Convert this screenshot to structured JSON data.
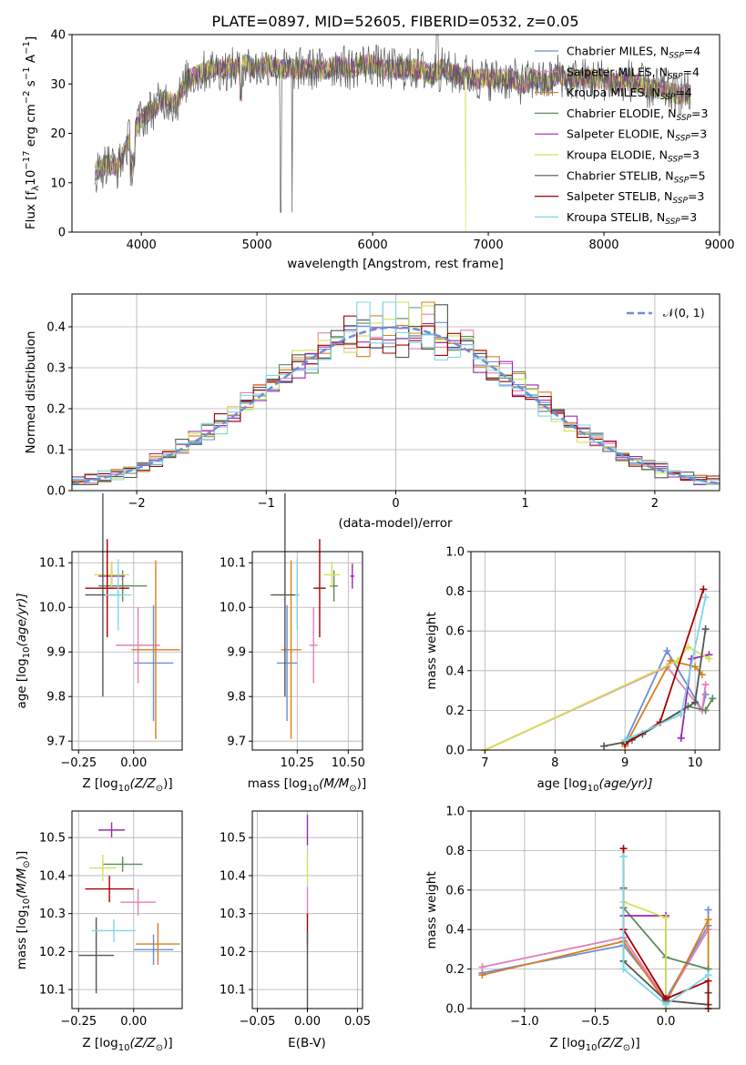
{
  "colors": {
    "c0": "#6a8fd8",
    "c1": "#e37fb9",
    "c2": "#d7801e",
    "c3": "#5c8a5c",
    "c4": "#9b27b4",
    "c5": "#d4e157",
    "c6": "#555555",
    "c7": "#a40000",
    "c8": "#7fd6e6"
  },
  "chart_data": [
    {
      "type": "line",
      "title": "PLATE=0897, MJD=52605, FIBERID=0532, z=0.05",
      "xlabel": "wavelength [Angstrom, rest frame]",
      "ylabel": "Flux [f",
      "ylabel_sub": "λ",
      "ylabel_mid": "10",
      "ylabel_sup1": "−17",
      "ylabel_mid2": " erg cm",
      "ylabel_sup2": "−2",
      "ylabel_mid3": " s",
      "ylabel_sup3": "−1",
      "ylabel_mid4": " A",
      "ylabel_sup4": "−1",
      "ylabel_end": "]",
      "xlim": [
        3400,
        9000
      ],
      "ylim": [
        0,
        40
      ],
      "xticks": [
        "4000",
        "5000",
        "6000",
        "7000",
        "8000",
        "9000"
      ],
      "yticks": [
        "0",
        "10",
        "20",
        "30",
        "40"
      ],
      "legend_position": "top-right",
      "legend": [
        {
          "imf": "Chabrier MILES, N",
          "sub": "SSP",
          "eq": "=4",
          "color": "#6a8fd8"
        },
        {
          "imf": "Salpeter MILES, N",
          "sub": "SSP",
          "eq": "=4",
          "color": "#e37fb9"
        },
        {
          "imf": "Kroupa MILES, N",
          "sub": "SSP",
          "eq": "=4",
          "color": "#d7801e"
        },
        {
          "imf": "Chabrier ELODIE, N",
          "sub": "SSP",
          "eq": "=3",
          "color": "#5c8a5c"
        },
        {
          "imf": "Salpeter ELODIE, N",
          "sub": "SSP",
          "eq": "=3",
          "color": "#9b27b4"
        },
        {
          "imf": "Kroupa ELODIE, N",
          "sub": "SSP",
          "eq": "=3",
          "color": "#d4e157"
        },
        {
          "imf": "Chabrier STELIB, N",
          "sub": "SSP",
          "eq": "=5",
          "color": "#555555"
        },
        {
          "imf": "Salpeter STELIB, N",
          "sub": "SSP",
          "eq": "=3",
          "color": "#a40000"
        },
        {
          "imf": "Kroupa STELIB, N",
          "sub": "SSP",
          "eq": "=3",
          "color": "#7fd6e6"
        }
      ],
      "spectrum_envelope": [
        [
          3600,
          12
        ],
        [
          3700,
          14
        ],
        [
          3800,
          13
        ],
        [
          3900,
          19
        ],
        [
          4000,
          23
        ],
        [
          4100,
          25
        ],
        [
          4200,
          27
        ],
        [
          4300,
          26
        ],
        [
          4400,
          31
        ],
        [
          4500,
          32
        ],
        [
          4600,
          33
        ],
        [
          4700,
          33
        ],
        [
          4800,
          33
        ],
        [
          4900,
          34
        ],
        [
          5000,
          33
        ],
        [
          5100,
          34
        ],
        [
          5200,
          33
        ],
        [
          5300,
          33
        ],
        [
          5400,
          33
        ],
        [
          5500,
          33
        ],
        [
          5600,
          33
        ],
        [
          5700,
          34
        ],
        [
          5800,
          33
        ],
        [
          5900,
          34
        ],
        [
          6000,
          34
        ],
        [
          6100,
          33
        ],
        [
          6200,
          33
        ],
        [
          6300,
          33
        ],
        [
          6400,
          33
        ],
        [
          6500,
          32
        ],
        [
          6600,
          33
        ],
        [
          6700,
          32
        ],
        [
          6800,
          32
        ],
        [
          6900,
          31
        ],
        [
          7000,
          31
        ],
        [
          7100,
          31
        ],
        [
          7200,
          31
        ],
        [
          7300,
          30
        ],
        [
          7400,
          31
        ],
        [
          7500,
          30
        ],
        [
          7600,
          32
        ],
        [
          7700,
          31
        ],
        [
          7800,
          31
        ],
        [
          7900,
          31
        ],
        [
          8000,
          31
        ],
        [
          8100,
          30
        ],
        [
          8200,
          31
        ],
        [
          8300,
          30
        ],
        [
          8400,
          29
        ],
        [
          8500,
          29
        ],
        [
          8600,
          28
        ],
        [
          8700,
          28
        ]
      ]
    },
    {
      "type": "line",
      "xlabel": "(data-model)/error",
      "ylabel": "Normed distribution",
      "xlim": [
        -2.5,
        2.5
      ],
      "ylim": [
        0,
        0.48
      ],
      "xticks": [
        "−2",
        "−1",
        "0",
        "1",
        "2"
      ],
      "yticks": [
        "0.0",
        "0.1",
        "0.2",
        "0.3",
        "0.4"
      ],
      "legend_position": "top-right",
      "legend": [
        {
          "label": "𝒩(0, 1)",
          "color": "#6a8fd8"
        }
      ]
    },
    {
      "type": "scatter",
      "xlabel": "Z [log",
      "xlabel_sub": "10",
      "xlabel_end": "(Z/Z",
      "xlabel_sub2": "⊙",
      "xlabel_end2": ")]",
      "ylabel": "age  [log",
      "ylabel_sub": "10",
      "ylabel_end": "(age/yr)]",
      "xlim": [
        -0.28,
        0.22
      ],
      "ylim": [
        9.68,
        10.125
      ],
      "xticks": [
        "−0.25",
        "0.00"
      ],
      "yticks": [
        "9.7",
        "9.8",
        "9.9",
        "10.0",
        "10.1"
      ],
      "points": [
        {
          "x": 0.09,
          "y": 9.875,
          "ex": 0.09,
          "ey": 0.13,
          "color": "#6a8fd8"
        },
        {
          "x": 0.02,
          "y": 9.915,
          "ex": 0.1,
          "ey": 0.085,
          "color": "#e37fb9"
        },
        {
          "x": 0.1,
          "y": 9.905,
          "ex": 0.11,
          "ey": 0.2,
          "color": "#d7801e"
        },
        {
          "x": -0.05,
          "y": 10.048,
          "ex": 0.11,
          "ey": 0.035,
          "color": "#5c8a5c"
        },
        {
          "x": -0.1,
          "y": 10.07,
          "ex": 0.06,
          "ey": 0.028,
          "color": "#9b27b4"
        },
        {
          "x": -0.1,
          "y": 10.073,
          "ex": 0.08,
          "ey": 0.03,
          "color": "#d4e157"
        },
        {
          "x": -0.14,
          "y": 10.028,
          "ex": 0.08,
          "ey": 0.228,
          "color": "#555555"
        },
        {
          "x": -0.12,
          "y": 10.043,
          "ex": 0.1,
          "ey": 0.11,
          "color": "#a40000"
        },
        {
          "x": -0.07,
          "y": 10.028,
          "ex": 0.06,
          "ey": 0.08,
          "color": "#7fd6e6"
        }
      ]
    },
    {
      "type": "scatter",
      "xlabel": "mass [log",
      "xlabel_sub": "10",
      "xlabel_end": "(M/M",
      "xlabel_sub2": "⊙",
      "xlabel_end2": ")]",
      "xlim": [
        10.03,
        10.57
      ],
      "ylim": [
        9.68,
        10.125
      ],
      "xticks": [
        "10.25",
        "10.50"
      ],
      "yticks": [
        "9.7",
        "9.8",
        "9.9",
        "10.0",
        "10.1"
      ],
      "points": [
        {
          "x": 10.2,
          "y": 9.875,
          "ex": 0.05,
          "ey": 0.13,
          "color": "#6a8fd8"
        },
        {
          "x": 10.33,
          "y": 9.915,
          "ex": 0.02,
          "ey": 0.085,
          "color": "#e37fb9"
        },
        {
          "x": 10.22,
          "y": 9.905,
          "ex": 0.05,
          "ey": 0.2,
          "color": "#d7801e"
        },
        {
          "x": 10.43,
          "y": 10.048,
          "ex": 0.02,
          "ey": 0.035,
          "color": "#5c8a5c"
        },
        {
          "x": 10.52,
          "y": 10.07,
          "ex": 0.01,
          "ey": 0.028,
          "color": "#9b27b4"
        },
        {
          "x": 10.42,
          "y": 10.073,
          "ex": 0.04,
          "ey": 0.03,
          "color": "#d4e157"
        },
        {
          "x": 10.19,
          "y": 10.028,
          "ex": 0.07,
          "ey": 0.228,
          "color": "#555555"
        },
        {
          "x": 10.36,
          "y": 10.043,
          "ex": 0.03,
          "ey": 0.11,
          "color": "#a40000"
        },
        {
          "x": 10.25,
          "y": 10.028,
          "ex": 0.01,
          "ey": 0.08,
          "color": "#7fd6e6"
        }
      ]
    },
    {
      "type": "line",
      "xlabel": "age  [log",
      "xlabel_sub": "10",
      "xlabel_end": "(age/yr)]",
      "ylabel": "mass weight",
      "xlim": [
        6.8,
        10.35
      ],
      "ylim": [
        0,
        1.0
      ],
      "xticks": [
        "7",
        "8",
        "9",
        "10"
      ],
      "yticks": [
        "0.0",
        "0.2",
        "0.4",
        "0.6",
        "0.8",
        "1.0"
      ],
      "series": [
        {
          "x": [
            9.0,
            9.6,
            10.1,
            10.15
          ],
          "y": [
            0.04,
            0.5,
            0.2,
            0.28
          ],
          "color": "#6a8fd8"
        },
        {
          "x": [
            7.0,
            9.6,
            10.1,
            10.15
          ],
          "y": [
            0.0,
            0.42,
            0.2,
            0.33
          ],
          "color": "#e37fb9"
        },
        {
          "x": [
            9.0,
            9.65,
            10.0,
            10.1
          ],
          "y": [
            0.02,
            0.45,
            0.42,
            0.38
          ],
          "color": "#d7801e"
        },
        {
          "x": [
            9.1,
            9.9,
            10.15,
            10.25
          ],
          "y": [
            0.05,
            0.22,
            0.2,
            0.26
          ],
          "color": "#5c8a5c"
        },
        {
          "x": [
            9.8,
            9.95,
            10.2
          ],
          "y": [
            0.06,
            0.46,
            0.48
          ],
          "color": "#9b27b4"
        },
        {
          "x": [
            7.0,
            9.75,
            9.9,
            10.2
          ],
          "y": [
            0.0,
            0.45,
            0.52,
            0.46
          ],
          "color": "#d4e157"
        },
        {
          "x": [
            8.7,
            9.0,
            9.25,
            10.0,
            10.15
          ],
          "y": [
            0.02,
            0.04,
            0.08,
            0.24,
            0.61
          ],
          "color": "#555555"
        },
        {
          "x": [
            9.0,
            9.5,
            10.12
          ],
          "y": [
            0.03,
            0.14,
            0.81
          ],
          "color": "#a40000"
        },
        {
          "x": [
            9.0,
            9.8,
            10.15
          ],
          "y": [
            0.05,
            0.18,
            0.77
          ],
          "color": "#7fd6e6"
        }
      ]
    },
    {
      "type": "scatter",
      "xlabel": "Z [log",
      "xlabel_sub": "10",
      "xlabel_end": "(Z/Z",
      "xlabel_sub2": "⊙",
      "xlabel_end2": ")]",
      "ylabel": "mass [log",
      "ylabel_sub": "10",
      "ylabel_end": "(M/M",
      "ylabel_sub2": "⊙",
      "ylabel_end2": ")]",
      "xlim": [
        -0.28,
        0.22
      ],
      "ylim": [
        10.05,
        10.57
      ],
      "xticks": [
        "−0.25",
        "0.00"
      ],
      "yticks": [
        "10.1",
        "10.2",
        "10.3",
        "10.4",
        "10.5"
      ],
      "points": [
        {
          "x": 0.09,
          "y": 10.205,
          "ex": 0.09,
          "ey": 0.04,
          "color": "#6a8fd8"
        },
        {
          "x": 0.02,
          "y": 10.33,
          "ex": 0.08,
          "ey": 0.035,
          "color": "#e37fb9"
        },
        {
          "x": 0.11,
          "y": 10.22,
          "ex": 0.1,
          "ey": 0.055,
          "color": "#d7801e"
        },
        {
          "x": -0.05,
          "y": 10.43,
          "ex": 0.09,
          "ey": 0.02,
          "color": "#5c8a5c"
        },
        {
          "x": -0.1,
          "y": 10.52,
          "ex": 0.06,
          "ey": 0.02,
          "color": "#9b27b4"
        },
        {
          "x": -0.14,
          "y": 10.42,
          "ex": 0.06,
          "ey": 0.035,
          "color": "#d4e157"
        },
        {
          "x": -0.17,
          "y": 10.19,
          "ex": 0.08,
          "ey": 0.1,
          "color": "#555555"
        },
        {
          "x": -0.11,
          "y": 10.365,
          "ex": 0.11,
          "ey": 0.035,
          "color": "#a40000"
        },
        {
          "x": -0.09,
          "y": 10.255,
          "ex": 0.1,
          "ey": 0.03,
          "color": "#7fd6e6"
        }
      ]
    },
    {
      "type": "scatter",
      "xlabel": "E(B-V)",
      "xlim": [
        -0.055,
        0.055
      ],
      "ylim": [
        10.05,
        10.57
      ],
      "xticks": [
        "−0.05",
        "0.00",
        "0.05"
      ],
      "yticks": [
        "10.1",
        "10.2",
        "10.3",
        "10.4",
        "10.5"
      ],
      "points": [
        {
          "x": 0.0,
          "y": 10.52,
          "ey": 0.04,
          "color": "#9b27b4"
        },
        {
          "x": 0.0,
          "y": 10.42,
          "ey": 0.04,
          "color": "#d4e157"
        },
        {
          "x": 0.0,
          "y": 10.33,
          "ey": 0.04,
          "color": "#e37fb9"
        },
        {
          "x": 0.0,
          "y": 10.26,
          "ey": 0.04,
          "color": "#a40000"
        },
        {
          "x": 0.0,
          "y": 10.22,
          "ey": 0.03,
          "color": "#7fd6e6"
        },
        {
          "x": 0.0,
          "y": 10.15,
          "ey": 0.1,
          "color": "#555555"
        }
      ]
    },
    {
      "type": "line",
      "xlabel": "Z [log",
      "xlabel_sub": "10",
      "xlabel_end": "(Z/Z",
      "xlabel_sub2": "⊙",
      "xlabel_end2": ")]",
      "ylabel": "mass weight",
      "xlim": [
        -1.38,
        0.38
      ],
      "ylim": [
        0,
        1.0
      ],
      "xticks": [
        "−1.0",
        "−0.5",
        "0.0"
      ],
      "yticks": [
        "0.0",
        "0.2",
        "0.4",
        "0.6",
        "0.8",
        "1.0"
      ],
      "series": [
        {
          "x": [
            -1.3,
            -0.3,
            0.0,
            0.3,
            0.3
          ],
          "y": [
            0.18,
            0.32,
            0.05,
            0.42,
            0.5
          ],
          "color": "#6a8fd8"
        },
        {
          "x": [
            -1.3,
            -0.3,
            0.0,
            0.3
          ],
          "y": [
            0.21,
            0.36,
            0.04,
            0.4
          ],
          "color": "#e37fb9"
        },
        {
          "x": [
            -1.3,
            -0.3,
            0.0,
            0.3,
            0.3
          ],
          "y": [
            0.17,
            0.34,
            0.03,
            0.45,
            0.02
          ],
          "color": "#d7801e"
        },
        {
          "x": [
            -0.3,
            0.0,
            0.3
          ],
          "y": [
            0.51,
            0.26,
            0.2
          ],
          "color": "#5c8a5c"
        },
        {
          "x": [
            -0.3,
            0.0,
            0.0
          ],
          "y": [
            0.47,
            0.47,
            0.06
          ],
          "color": "#9b27b4"
        },
        {
          "x": [
            -0.3,
            0.0,
            0.0
          ],
          "y": [
            0.54,
            0.46,
            0.0
          ],
          "color": "#d4e157"
        },
        {
          "x": [
            -0.3,
            -0.3,
            0.0,
            0.3,
            0.3
          ],
          "y": [
            0.61,
            0.24,
            0.04,
            0.02,
            0.08
          ],
          "color": "#555555"
        },
        {
          "x": [
            -0.3,
            -0.3,
            0.0,
            0.3,
            0.3
          ],
          "y": [
            0.81,
            0.4,
            0.05,
            0.14,
            0.0
          ],
          "color": "#a40000"
        },
        {
          "x": [
            -0.3,
            -0.3,
            0.0,
            0.3
          ],
          "y": [
            0.77,
            0.2,
            0.02,
            0.17
          ],
          "color": "#7fd6e6"
        }
      ]
    }
  ]
}
